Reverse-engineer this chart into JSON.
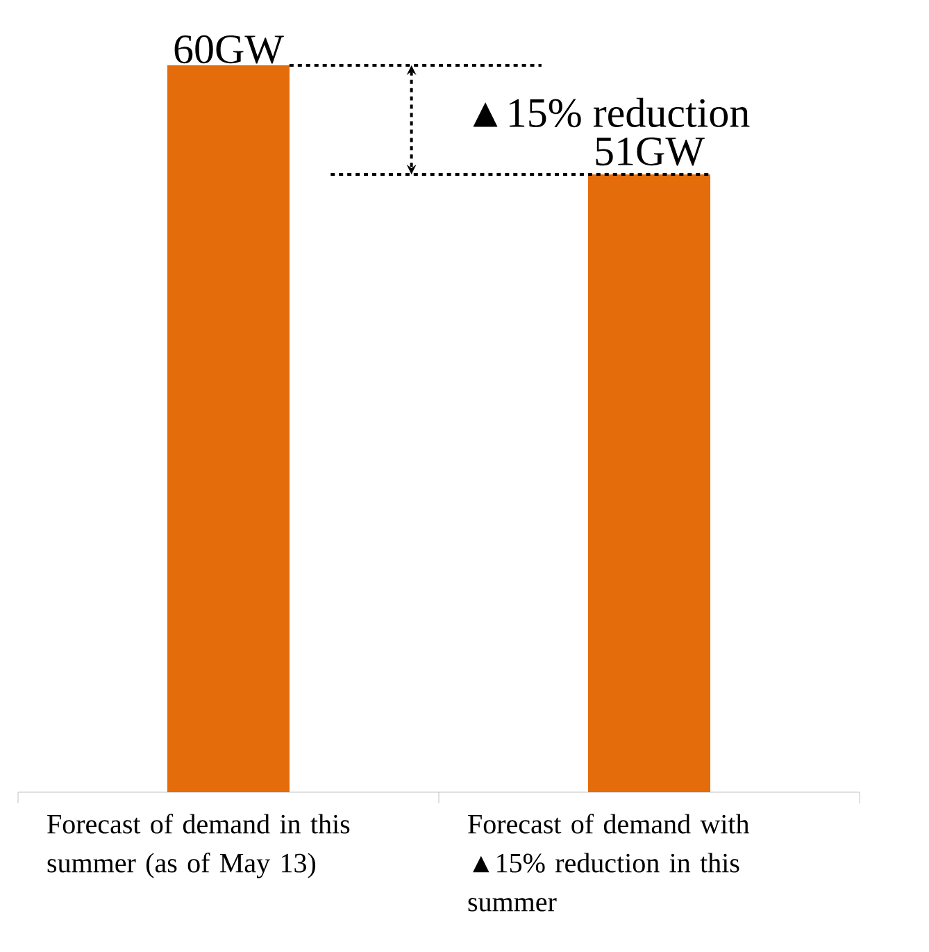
{
  "chart_data": {
    "type": "bar",
    "categories": [
      "Forecast of demand  in this summer (as of May 13)",
      "Forecast of demand with ▲15% reduction  in this summer"
    ],
    "values": [
      60,
      51
    ],
    "color": "#e46c0a",
    "value_labels": [
      "60GW",
      "51GW"
    ],
    "annotations": [
      "▲15% reduction"
    ]
  }
}
